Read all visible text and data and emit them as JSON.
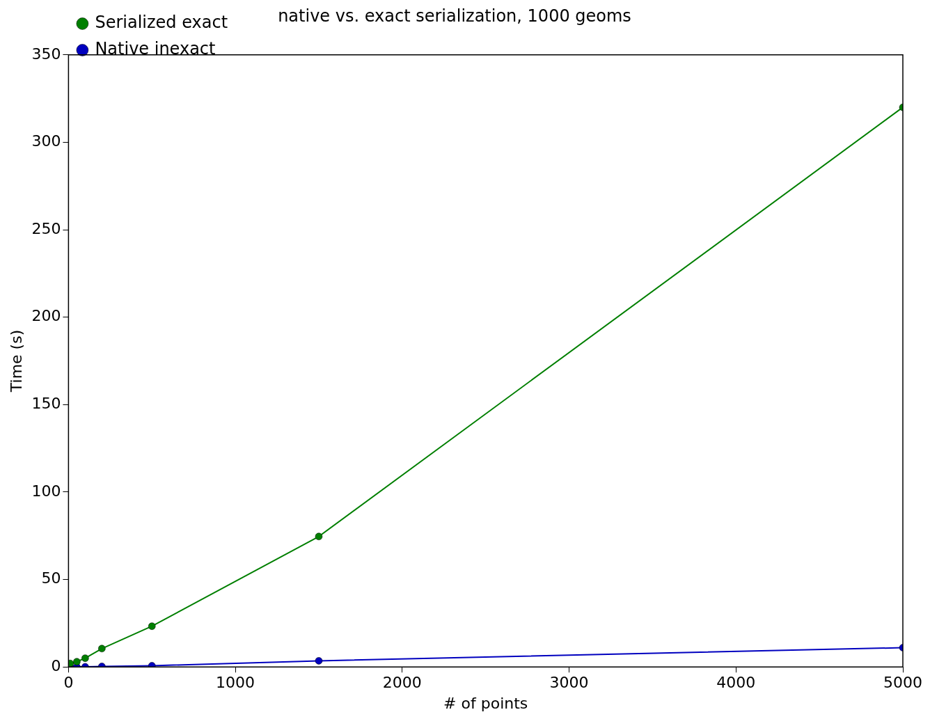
{
  "chart_data": {
    "type": "line",
    "title": "native vs. exact serialization, 1000 geoms",
    "xlabel": "# of points",
    "ylabel": "Time (s)",
    "x": [
      10,
      50,
      100,
      200,
      500,
      1500,
      5000
    ],
    "series": [
      {
        "name": "Native inexact",
        "color": "#0000bf",
        "values": [
          0.1,
          0.1,
          0.1,
          0.3,
          0.7,
          3.5,
          11
        ]
      },
      {
        "name": "Serialized exact",
        "color": "#007f00",
        "values": [
          2,
          3,
          5,
          10.5,
          23.3,
          74.6,
          320
        ]
      }
    ],
    "xlim": [
      0,
      5000
    ],
    "xticks": [
      0,
      1000,
      2000,
      3000,
      4000,
      5000
    ],
    "ylim": [
      0,
      350
    ],
    "yticks": [
      0,
      50,
      100,
      150,
      200,
      250,
      300,
      350
    ],
    "grid": false,
    "legend": "top left",
    "marker": "circle",
    "line_style": "solid"
  }
}
